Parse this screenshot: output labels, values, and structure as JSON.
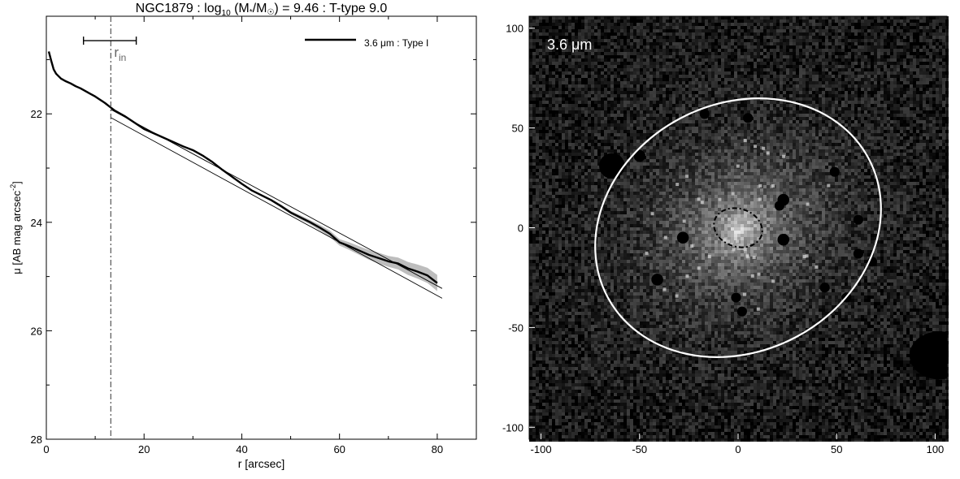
{
  "chart_data": [
    {
      "type": "line",
      "title": {
        "prefix": "NGC1879 : log",
        "sub": "10",
        "middle": " (M",
        "star_sub": "*",
        "slash": "/M",
        "sun_sub": "☉",
        "suffix": ") = 9.46 : T-type 9.0"
      },
      "xlabel": "r [arcsec]",
      "ylabel": {
        "main": "μ [AB mag arcsec",
        "sup": "-2",
        "close": "]"
      },
      "xlim": [
        0,
        88
      ],
      "ylim": [
        28,
        20.2
      ],
      "y_inverted": true,
      "x_ticks": [
        0,
        20,
        40,
        60,
        80
      ],
      "x_tick_labels": [
        "0",
        "20",
        "40",
        "60",
        "80"
      ],
      "y_ticks": [
        22,
        24,
        26,
        28
      ],
      "y_tick_labels": [
        "22",
        "24",
        "26",
        "28"
      ],
      "r_in": {
        "value": 13.2,
        "label_main": "r",
        "label_sub": "in",
        "range": [
          7.6,
          18.4
        ],
        "range_y": 20.65
      },
      "legend": {
        "label": "3.6 μm : Type I",
        "position": "top-right"
      },
      "series": [
        {
          "name": "3.6 μm : Type I",
          "x": [
            0.5,
            1,
            1.5,
            2,
            3,
            4,
            5,
            6,
            7,
            8,
            9,
            10,
            11,
            12,
            13,
            14,
            15,
            16,
            17,
            18,
            19,
            20,
            22,
            24,
            26,
            28,
            30,
            32,
            34,
            36,
            38,
            40,
            42,
            44,
            46,
            48,
            50,
            52,
            54,
            56,
            58,
            60,
            62,
            64,
            66,
            68,
            70,
            72,
            74,
            76,
            78,
            80
          ],
          "y": [
            20.85,
            21.02,
            21.18,
            21.26,
            21.35,
            21.4,
            21.44,
            21.49,
            21.53,
            21.58,
            21.63,
            21.68,
            21.74,
            21.8,
            21.87,
            21.94,
            21.99,
            22.04,
            22.1,
            22.16,
            22.22,
            22.28,
            22.36,
            22.44,
            22.52,
            22.6,
            22.67,
            22.77,
            22.89,
            23.03,
            23.16,
            23.29,
            23.41,
            23.5,
            23.59,
            23.7,
            23.82,
            23.91,
            24.0,
            24.1,
            24.21,
            24.37,
            24.44,
            24.52,
            24.6,
            24.66,
            24.72,
            24.76,
            24.85,
            24.91,
            24.98,
            25.12
          ],
          "uncertainty": [
            0,
            0,
            0,
            0,
            0,
            0,
            0,
            0,
            0,
            0,
            0,
            0,
            0,
            0,
            0,
            0,
            0,
            0,
            0,
            0,
            0,
            0,
            0,
            0,
            0,
            0,
            0,
            0,
            0,
            0,
            0,
            0,
            0,
            0.02,
            0.02,
            0.03,
            0.03,
            0.04,
            0.04,
            0.05,
            0.06,
            0.06,
            0.07,
            0.08,
            0.09,
            0.1,
            0.1,
            0.11,
            0.12,
            0.13,
            0.14,
            0.15
          ]
        }
      ],
      "fit_lines": [
        {
          "x": [
            13.2,
            81
          ],
          "y": [
            21.92,
            25.22
          ]
        },
        {
          "x": [
            13.2,
            81
          ],
          "y": [
            22.07,
            25.4
          ]
        }
      ]
    },
    {
      "type": "heatmap",
      "label": "3.6 μm",
      "xlim": [
        -106,
        106
      ],
      "ylim": [
        -106,
        106
      ],
      "x_ticks": [
        -100,
        -50,
        0,
        50,
        100
      ],
      "x_tick_labels": [
        "-100",
        "-50",
        "0",
        "50",
        "100"
      ],
      "y_ticks": [
        -100,
        -50,
        0,
        50,
        100
      ],
      "y_tick_labels": [
        "-100",
        "-50",
        "0",
        "50",
        "100"
      ],
      "outer_ellipse": {
        "cx": 0,
        "cy": 0,
        "a": 75,
        "b": 62,
        "angle_deg": 28
      },
      "inner_ellipse": {
        "cx": 0,
        "cy": 0,
        "a": 12.5,
        "b": 9.5,
        "angle_deg": -18
      },
      "masked_sources": [
        {
          "x": -64,
          "y": 31,
          "r": 6.5
        },
        {
          "x": -50,
          "y": 36,
          "r": 3
        },
        {
          "x": -17,
          "y": 57,
          "r": 2.5
        },
        {
          "x": 23,
          "y": 14,
          "r": 3
        },
        {
          "x": 21,
          "y": 11,
          "r": 2.5
        },
        {
          "x": -28,
          "y": -5,
          "r": 3
        },
        {
          "x": 23,
          "y": -6,
          "r": 3
        },
        {
          "x": -41,
          "y": -26,
          "r": 3
        },
        {
          "x": -1,
          "y": -35,
          "r": 2.5
        },
        {
          "x": 2,
          "y": -42,
          "r": 2.5
        },
        {
          "x": 44,
          "y": -30,
          "r": 2.5
        },
        {
          "x": 61,
          "y": -13,
          "r": 2.5
        },
        {
          "x": 68,
          "y": -17,
          "r": 2.5
        },
        {
          "x": 55,
          "y": -35,
          "r": 2.5
        },
        {
          "x": 49,
          "y": 28,
          "r": 2.5
        },
        {
          "x": 61,
          "y": 4,
          "r": 2.5
        },
        {
          "x": 5,
          "y": 55,
          "r": 2.5
        },
        {
          "x": 102,
          "y": -64,
          "r": 12
        }
      ]
    }
  ]
}
